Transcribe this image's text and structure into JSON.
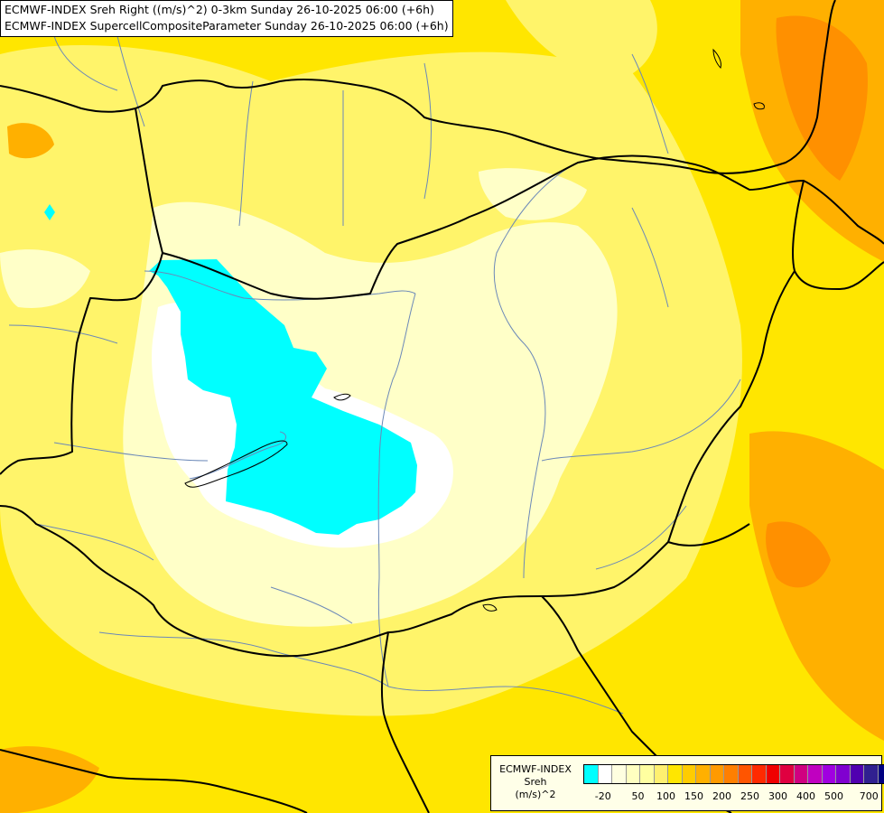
{
  "title": {
    "line1": "ECMWF-INDEX Sreh Right ((m/s)^2) 0-3km Sunday 26-10-2025 06:00 (+6h)",
    "line2": "ECMWF-INDEX SupercellCompositeParameter Sunday 26-10-2025 06:00 (+6h)"
  },
  "legend": {
    "line1": "ECMWF-INDEX",
    "line2": "Sreh",
    "line3": "(m/s)^2",
    "colors": [
      "#00ffff",
      "#ffffff",
      "#ffffe0",
      "#ffffc0",
      "#ffffa0",
      "#fff070",
      "#ffe600",
      "#ffcc00",
      "#ffb000",
      "#ff9a00",
      "#ff7f00",
      "#ff5500",
      "#ff2a00",
      "#f00000",
      "#e00040",
      "#d00080",
      "#c000c0",
      "#a000e0",
      "#8000d0",
      "#5000b0",
      "#302090",
      "#000080"
    ],
    "ticks": [
      "-20",
      "50",
      "100",
      "150",
      "200",
      "250",
      "300",
      "400",
      "500",
      "700"
    ]
  },
  "palette": {
    "base": "#ffe600",
    "cyan": "#00ffff",
    "white": "#ffffff",
    "pale": "#ffffc8",
    "light": "#fff46a",
    "orange": "#ffb000",
    "deep_orange": "#ff9000",
    "border": "#000000",
    "river": "#6b88b8"
  }
}
